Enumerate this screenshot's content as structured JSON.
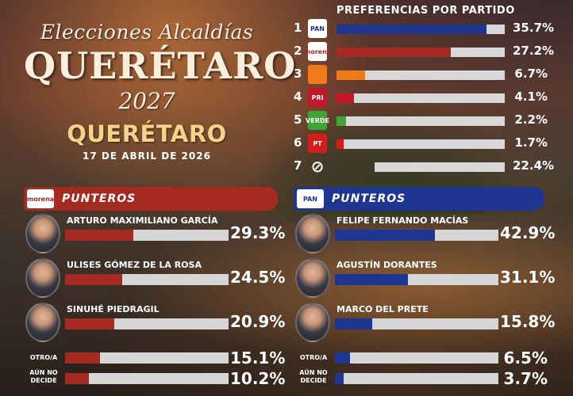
{
  "header": {
    "script_title": "Elecciones Alcaldías",
    "city_title": "QUERÉTARO",
    "year": "2027",
    "subtitle": "QUERÉTARO",
    "date": "17 DE ABRIL DE 2026"
  },
  "colors": {
    "morena": "#a52a22",
    "pan": "#1e3690",
    "mc": "#f07a1a",
    "pri": "#c4182a",
    "verde": "#3fa535",
    "pt": "#d41d1d",
    "track": "#d8d8d8"
  },
  "preferences": {
    "title": "PREFERENCIAS POR PARTIDO",
    "rows": [
      {
        "rank": "1",
        "party": "PAN",
        "logo_text": "PAN",
        "icon": "pan-logo-icon",
        "value": 35.7,
        "pct": "35.7%",
        "color": "#1e3690"
      },
      {
        "rank": "2",
        "party": "Morena",
        "logo_text": "morena",
        "icon": "morena-logo-icon",
        "value": 27.2,
        "pct": "27.2%",
        "color": "#a52a22"
      },
      {
        "rank": "3",
        "party": "MC",
        "logo_text": "",
        "icon": "mc-logo-icon",
        "value": 6.7,
        "pct": "6.7%",
        "color": "#f07a1a"
      },
      {
        "rank": "4",
        "party": "PRI",
        "logo_text": "PRI",
        "icon": "pri-logo-icon",
        "value": 4.1,
        "pct": "4.1%",
        "color": "#c4182a"
      },
      {
        "rank": "5",
        "party": "Verde",
        "logo_text": "VERDE",
        "icon": "verde-logo-icon",
        "value": 2.2,
        "pct": "2.2%",
        "color": "#3fa535"
      },
      {
        "rank": "6",
        "party": "PT",
        "logo_text": "PT",
        "icon": "pt-logo-icon",
        "value": 1.7,
        "pct": "1.7%",
        "color": "#d41d1d"
      },
      {
        "rank": "7",
        "party": "Ninguno",
        "logo_text": "⊘",
        "icon": "none-symbol-icon",
        "value": 22.4,
        "pct": "22.4%",
        "color": "#d8d8d8"
      }
    ]
  },
  "morena_panel": {
    "label": "PUNTEROS",
    "logo_text": "morena",
    "candidates": [
      {
        "name": "ARTURO MAXIMILIANO GARCÍA",
        "value": 29.3,
        "pct": "29.3%"
      },
      {
        "name": "ULISES GÓMEZ DE LA ROSA",
        "value": 24.5,
        "pct": "24.5%"
      },
      {
        "name": "SINUHÉ PIEDRAGIL",
        "value": 20.9,
        "pct": "20.9%"
      }
    ],
    "extras": [
      {
        "label": "OTRO/A",
        "value": 15.1,
        "pct": "15.1%"
      },
      {
        "label": "AÚN NO DECIDE",
        "value": 10.2,
        "pct": "10.2%"
      }
    ]
  },
  "pan_panel": {
    "label": "PUNTEROS",
    "logo_text": "PAN",
    "candidates": [
      {
        "name": "FELIPE FERNANDO MACÍAS",
        "value": 42.9,
        "pct": "42.9%"
      },
      {
        "name": "AGUSTÍN DORANTES",
        "value": 31.1,
        "pct": "31.1%"
      },
      {
        "name": "MARCO DEL PRETE",
        "value": 15.8,
        "pct": "15.8%"
      }
    ],
    "extras": [
      {
        "label": "OTRO/A",
        "value": 6.5,
        "pct": "6.5%"
      },
      {
        "label": "AÚN NO DECIDE",
        "value": 3.7,
        "pct": "3.7%"
      }
    ]
  },
  "chart_data": [
    {
      "type": "bar",
      "title": "PREFERENCIAS POR PARTIDO",
      "categories": [
        "1",
        "2",
        "3",
        "4",
        "5",
        "6",
        "7"
      ],
      "values": [
        35.7,
        27.2,
        6.7,
        4.1,
        2.2,
        1.7,
        22.4
      ]
    },
    {
      "type": "bar",
      "title": "PUNTEROS",
      "categories": [
        "ARTURO MAXIMILIANO GARCÍA",
        "ULISES GÓMEZ DE LA ROSA",
        "SINUHÉ PIEDRAGIL",
        "OTRO/A",
        "AÚN NO DECIDE"
      ],
      "values": [
        29.3,
        24.5,
        20.9,
        15.1,
        10.2
      ]
    },
    {
      "type": "bar",
      "title": "PUNTEROS",
      "categories": [
        "FELIPE FERNANDO MACÍAS",
        "AGUSTÍN DORANTES",
        "MARCO DEL PRETE",
        "OTRO/A",
        "AÚN NO DECIDE"
      ],
      "values": [
        42.9,
        31.1,
        15.8,
        6.5,
        3.7
      ]
    }
  ]
}
